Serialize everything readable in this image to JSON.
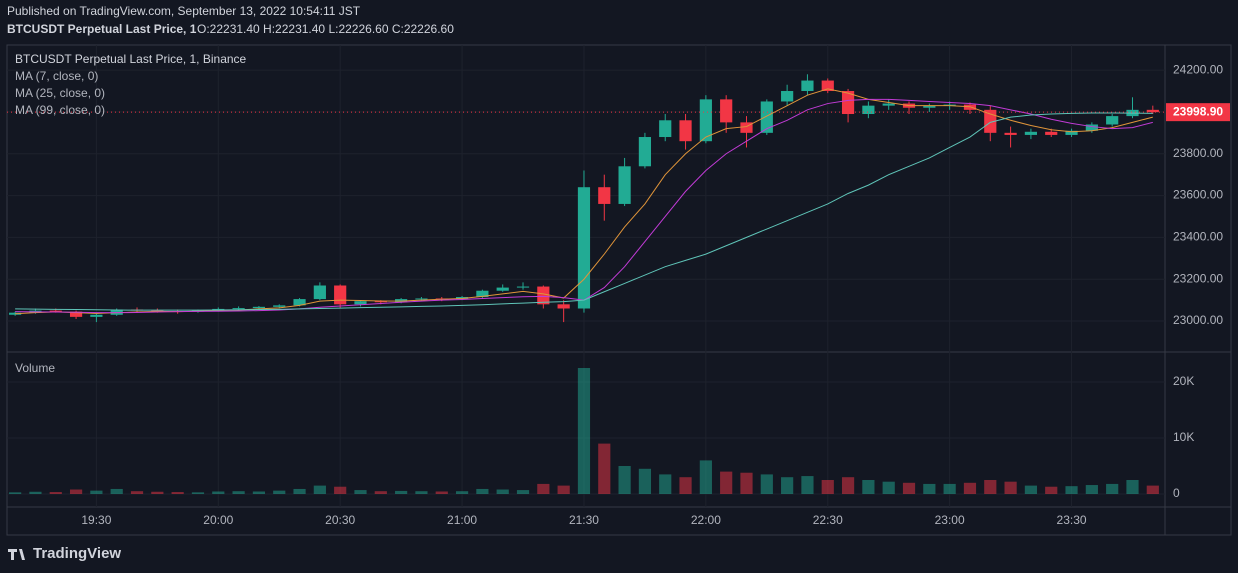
{
  "header": {
    "published": "Published on TradingView.com, September 13, 2022 10:54:11 JST",
    "symbol": "BTCUSDT Perpetual Last Price, 1",
    "ohlc": "O:22231.40 H:22231.40 L:22226.60 C:22226.60"
  },
  "chart_data": {
    "type": "candlestick",
    "title": "BTCUSDT Perpetual Last Price, 1, Binance",
    "x": [
      "19:10",
      "19:15",
      "19:20",
      "19:25",
      "19:30",
      "19:35",
      "19:40",
      "19:45",
      "19:50",
      "19:55",
      "20:00",
      "20:05",
      "20:10",
      "20:15",
      "20:20",
      "20:25",
      "20:30",
      "20:35",
      "20:40",
      "20:45",
      "20:50",
      "20:55",
      "21:00",
      "21:05",
      "21:10",
      "21:15",
      "21:20",
      "21:25",
      "21:30",
      "21:35",
      "21:40",
      "21:45",
      "21:50",
      "21:55",
      "22:00",
      "22:05",
      "22:10",
      "22:15",
      "22:20",
      "22:25",
      "22:30",
      "22:35",
      "22:40",
      "22:45",
      "22:50",
      "22:55",
      "23:00",
      "23:05",
      "23:10",
      "23:15",
      "23:20",
      "23:25",
      "23:30",
      "23:35",
      "23:40",
      "23:45",
      "23:50"
    ],
    "open": [
      23030,
      23040,
      23050,
      23045,
      23020,
      23030,
      23055,
      23050,
      23048,
      23045,
      23050,
      23058,
      23062,
      23068,
      23075,
      23105,
      23170,
      23080,
      23095,
      23090,
      23105,
      23108,
      23105,
      23115,
      23145,
      23160,
      23165,
      23080,
      23060,
      23640,
      23560,
      23740,
      23880,
      23960,
      23860,
      24060,
      23950,
      23900,
      24050,
      24100,
      24150,
      24100,
      23990,
      24030,
      24040,
      24020,
      24030,
      24035,
      24010,
      23900,
      23890,
      23905,
      23890,
      23910,
      23940,
      23980,
      24010
    ],
    "high": [
      23045,
      23060,
      23060,
      23050,
      23035,
      23060,
      23065,
      23060,
      23055,
      23055,
      23065,
      23070,
      23072,
      23080,
      23110,
      23185,
      23175,
      23100,
      23100,
      23110,
      23115,
      23115,
      23120,
      23150,
      23175,
      23185,
      23170,
      23100,
      23720,
      23700,
      23780,
      23900,
      23990,
      23990,
      24080,
      24080,
      23980,
      24060,
      24130,
      24180,
      24160,
      24110,
      24050,
      24060,
      24050,
      24040,
      24050,
      24045,
      24030,
      23930,
      23920,
      23920,
      23920,
      23950,
      23990,
      24070,
      24030
    ],
    "low": [
      23025,
      23035,
      23040,
      23010,
      22995,
      23025,
      23045,
      23040,
      23035,
      23040,
      23045,
      23050,
      23055,
      23060,
      23070,
      23100,
      23060,
      23070,
      23080,
      23085,
      23095,
      23095,
      23100,
      23110,
      23140,
      23150,
      23060,
      22995,
      23040,
      23480,
      23550,
      23730,
      23860,
      23820,
      23850,
      23900,
      23830,
      23890,
      24030,
      24080,
      24090,
      23950,
      23970,
      24010,
      23990,
      24000,
      24010,
      23990,
      23860,
      23830,
      23870,
      23880,
      23880,
      23900,
      23930,
      23970,
      23990
    ],
    "close": [
      23040,
      23050,
      23045,
      23020,
      23030,
      23055,
      23050,
      23048,
      23045,
      23050,
      23058,
      23062,
      23068,
      23075,
      23105,
      23170,
      23080,
      23095,
      23090,
      23105,
      23108,
      23105,
      23115,
      23145,
      23160,
      23165,
      23080,
      23060,
      23640,
      23560,
      23740,
      23880,
      23960,
      23860,
      24060,
      23950,
      23900,
      24050,
      24100,
      24150,
      24100,
      23990,
      24030,
      24040,
      24020,
      24030,
      24035,
      24010,
      23900,
      23890,
      23905,
      23890,
      23910,
      23940,
      23980,
      24010,
      23998.9
    ],
    "xlim": [
      "19:08",
      "23:53"
    ],
    "xticks": [
      "19:30",
      "20:00",
      "20:30",
      "21:00",
      "21:30",
      "22:00",
      "22:30",
      "23:00",
      "23:30"
    ],
    "ylim": [
      22852,
      24320
    ],
    "yticks": [
      {
        "value": 23000,
        "label": "23000.00"
      },
      {
        "value": 23200,
        "label": "23200.00"
      },
      {
        "value": 23400,
        "label": "23400.00"
      },
      {
        "value": 23600,
        "label": "23600.00"
      },
      {
        "value": 23800,
        "label": "23800.00"
      },
      {
        "value": 24000,
        "label": "24000.00"
      },
      {
        "value": 24200,
        "label": "24200.00"
      }
    ],
    "grid": true,
    "up_color": "#22ab94",
    "down_color": "#f23645",
    "last_price_label": "23998.90",
    "ma": [
      {
        "name": "MA (7, close, 0)",
        "color": "#e0953a",
        "values": [
          23035,
          23040,
          23044,
          23040,
          23036,
          23040,
          23043,
          23046,
          23045,
          23047,
          23050,
          23053,
          23058,
          23063,
          23075,
          23095,
          23100,
          23098,
          23096,
          23095,
          23100,
          23104,
          23108,
          23118,
          23130,
          23142,
          23130,
          23110,
          23200,
          23320,
          23450,
          23560,
          23700,
          23800,
          23880,
          23920,
          23930,
          23980,
          24030,
          24080,
          24110,
          24090,
          24060,
          24045,
          24030,
          24030,
          24030,
          24025,
          23990,
          23960,
          23935,
          23915,
          23905,
          23910,
          23925,
          23950,
          23975
        ]
      },
      {
        "name": "MA (25, close, 0)",
        "color": "#c13bd6",
        "values": [
          23045,
          23044,
          23043,
          23042,
          23040,
          23040,
          23041,
          23043,
          23045,
          23046,
          23047,
          23048,
          23050,
          23053,
          23058,
          23066,
          23072,
          23078,
          23084,
          23090,
          23095,
          23100,
          23103,
          23108,
          23112,
          23116,
          23118,
          23112,
          23100,
          23160,
          23260,
          23380,
          23500,
          23620,
          23720,
          23800,
          23860,
          23920,
          23960,
          24010,
          24040,
          24055,
          24060,
          24060,
          24055,
          24050,
          24045,
          24040,
          24030,
          24010,
          23990,
          23965,
          23945,
          23930,
          23920,
          23925,
          23950
        ]
      },
      {
        "name": "MA (99, close, 0)",
        "color": "#5fc4b8",
        "values": [
          23058,
          23057,
          23056,
          23055,
          23054,
          23053,
          23052,
          23052,
          23052,
          23052,
          23053,
          23054,
          23055,
          23056,
          23058,
          23060,
          23062,
          23064,
          23066,
          23068,
          23070,
          23072,
          23075,
          23078,
          23082,
          23086,
          23090,
          23093,
          23100,
          23140,
          23180,
          23220,
          23260,
          23290,
          23320,
          23360,
          23400,
          23440,
          23480,
          23520,
          23560,
          23610,
          23650,
          23700,
          23740,
          23780,
          23830,
          23880,
          23950,
          23975,
          23985,
          23990,
          23993,
          23995,
          23995,
          23994,
          23993
        ]
      }
    ],
    "volume": {
      "title": "Volume",
      "values": [
        300,
        400,
        350,
        800,
        600,
        900,
        500,
        400,
        350,
        300,
        450,
        500,
        450,
        600,
        900,
        1500,
        1300,
        700,
        500,
        550,
        500,
        450,
        500,
        900,
        800,
        700,
        1800,
        1500,
        22500,
        9000,
        5000,
        4500,
        3500,
        3000,
        6000,
        4000,
        3800,
        3500,
        3000,
        3200,
        2500,
        3000,
        2500,
        2200,
        2000,
        1800,
        1800,
        2000,
        2500,
        2200,
        1500,
        1300,
        1400,
        1600,
        1800,
        2500,
        1500
      ],
      "ylim": [
        -2321,
        25357
      ],
      "yticks": [
        0,
        {
          "value": 10000,
          "label": "10K"
        },
        {
          "value": 20000,
          "label": "20K"
        }
      ]
    }
  },
  "footer": {
    "logo": "TradingView"
  }
}
